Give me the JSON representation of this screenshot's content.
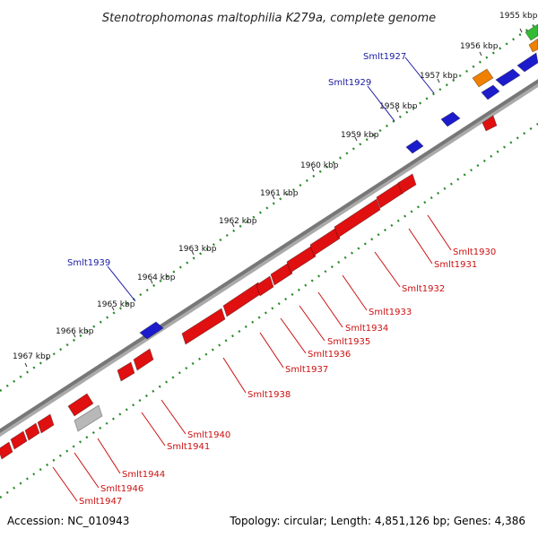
{
  "title": "Stenotrophomonas maltophilia K279a, complete genome",
  "footer": {
    "accession": "Accession: NC_010943",
    "summary": "Topology: circular; Length: 4,851,126 bp; Genes: 4,386"
  },
  "colors": {
    "backbone": "#777777",
    "ticks": "#2a8a2a",
    "forward_gene": "#1c1ccc",
    "reverse_gene": "#e01010",
    "forward_label": "#1a1aa0",
    "reverse_label": "#cc1010",
    "orange_gene": "#f08000",
    "green_gene": "#33bb33",
    "gray_gene": "#b8b8b8"
  },
  "kbp_labels": [
    "1955 kbp",
    "1956 kbp",
    "1957 kbp",
    "1958 kbp",
    "1959 kbp",
    "1960 kbp",
    "1961 kbp",
    "1962 kbp",
    "1963 kbp",
    "1964 kbp",
    "1965 kbp",
    "1966 kbp",
    "1967 kbp"
  ],
  "forward_labels": [
    "Smlt1927",
    "Smlt1929",
    "Smlt1939"
  ],
  "reverse_labels": [
    "Smlt1930",
    "Smlt1931",
    "Smlt1932",
    "Smlt1933",
    "Smlt1934",
    "Smlt1935",
    "Smlt1936",
    "Smlt1937",
    "Smlt1938",
    "Smlt1940",
    "Smlt1941",
    "Smlt1944",
    "Smlt1946",
    "Smlt1947"
  ]
}
